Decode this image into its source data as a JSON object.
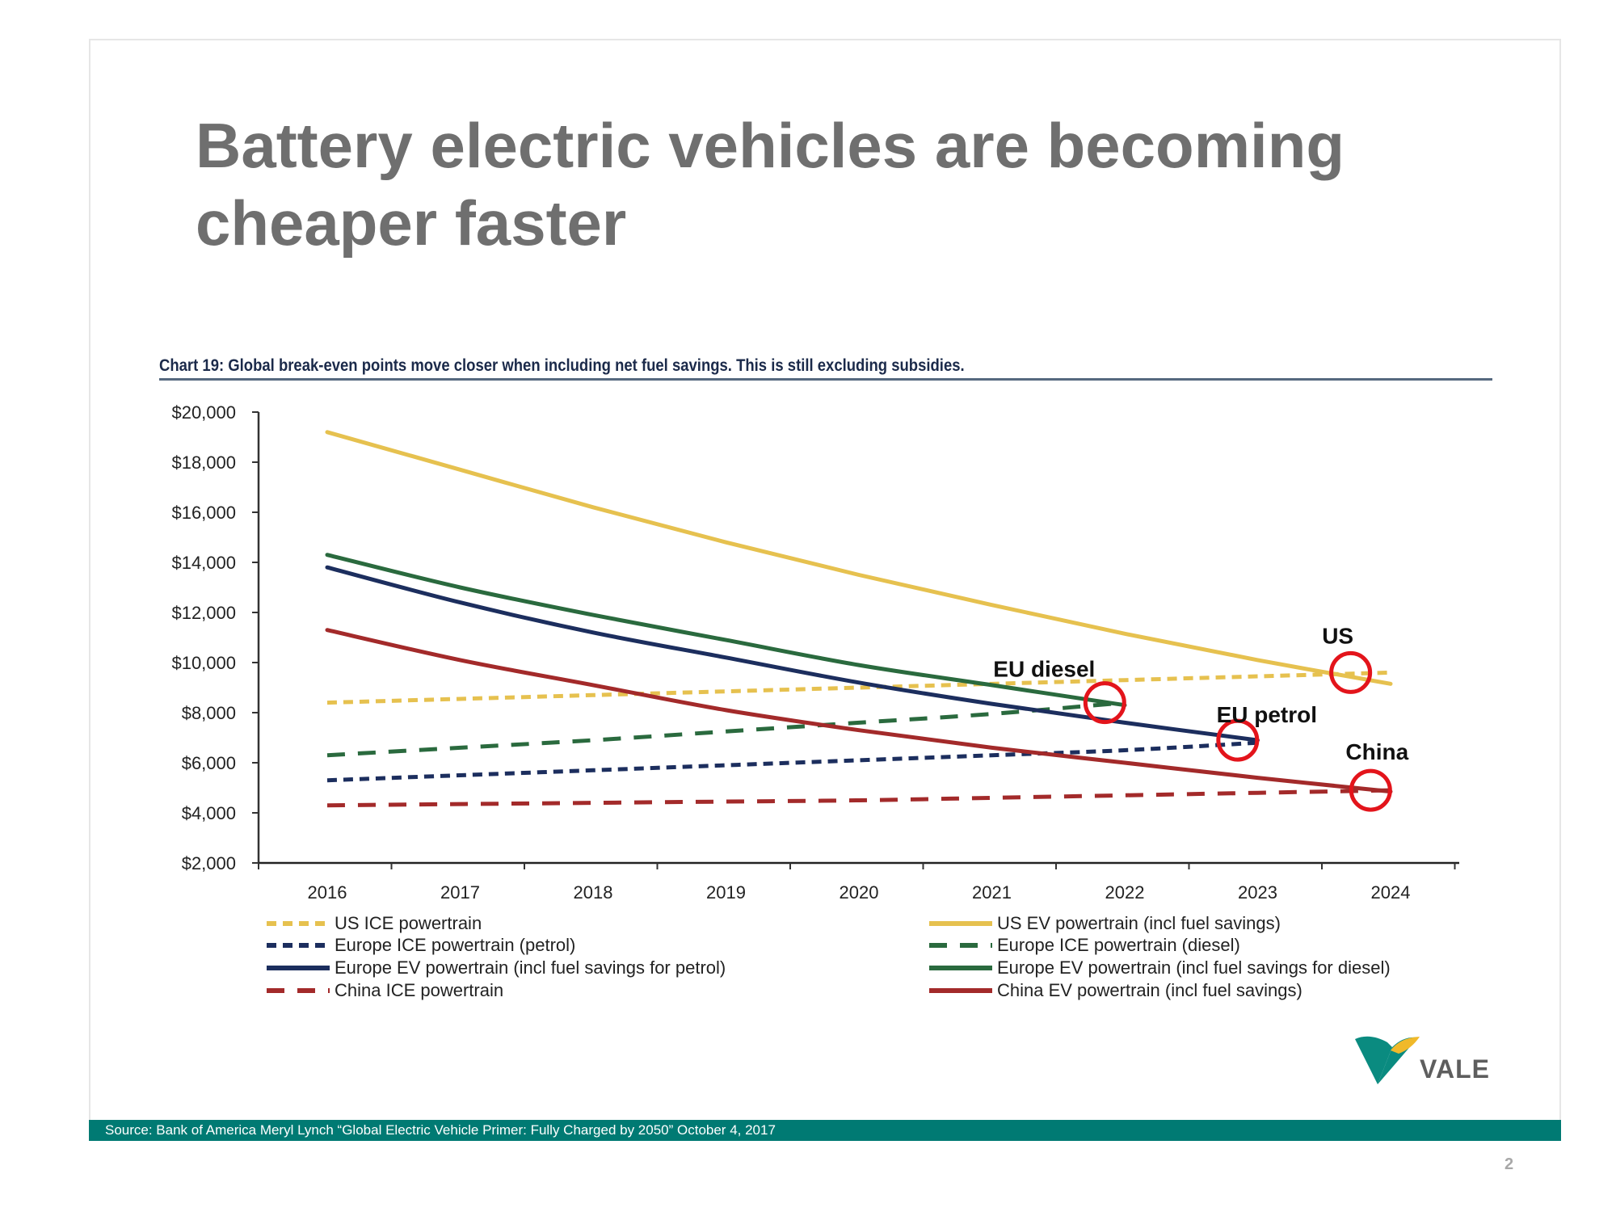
{
  "slide": {
    "title": "Battery electric vehicles are becoming cheaper faster",
    "footer_source": "Source: Bank of America Meryl Lynch “Global Electric Vehicle Primer: Fully Charged by 2050” October 4, 2017",
    "page_number": "2",
    "logo_text": "VALE",
    "colors": {
      "footer": "#007a73",
      "logo_teal": "#0a8b80",
      "logo_yellow": "#f0b92a"
    }
  },
  "chart_data": {
    "type": "line",
    "title": "Chart 19: Global break-even points move closer when including net fuel savings. This is still excluding subsidies.",
    "xlabel": "",
    "ylabel": "",
    "categories": [
      "2016",
      "2017",
      "2018",
      "2019",
      "2020",
      "2021",
      "2022",
      "2023",
      "2024"
    ],
    "ylim": [
      2000,
      20000
    ],
    "yticks": [
      2000,
      4000,
      6000,
      8000,
      10000,
      12000,
      14000,
      16000,
      18000,
      20000
    ],
    "ytick_labels": [
      "$2,000",
      "$4,000",
      "$6,000",
      "$8,000",
      "$10,000",
      "$12,000",
      "$14,000",
      "$16,000",
      "$18,000",
      "$20,000"
    ],
    "grid": false,
    "legend_position": "bottom",
    "series": [
      {
        "name": "US ICE powertrain",
        "color": "#e6c14f",
        "style": "dotted",
        "values": [
          8400,
          8550,
          8700,
          8850,
          9000,
          9150,
          9300,
          9450,
          9600
        ]
      },
      {
        "name": "US EV powertrain (incl fuel savings)",
        "color": "#e6c14f",
        "style": "solid",
        "values": [
          19200,
          17700,
          16200,
          14800,
          13500,
          12300,
          11150,
          10100,
          9150
        ]
      },
      {
        "name": "Europe ICE powertrain (petrol)",
        "color": "#1c2e5e",
        "style": "dotted",
        "values": [
          5300,
          5500,
          5700,
          5900,
          6100,
          6300,
          6500,
          6800,
          null
        ]
      },
      {
        "name": "Europe ICE powertrain (diesel)",
        "color": "#2a6a3e",
        "style": "dashed",
        "values": [
          6300,
          6600,
          6900,
          7250,
          7600,
          7950,
          8400,
          null,
          null
        ]
      },
      {
        "name": "Europe EV powertrain (incl fuel savings for petrol)",
        "color": "#1c2e5e",
        "style": "solid",
        "values": [
          13800,
          12400,
          11200,
          10200,
          9200,
          8350,
          7600,
          6900,
          null
        ]
      },
      {
        "name": "Europe EV powertrain (incl fuel savings for diesel)",
        "color": "#2a6a3e",
        "style": "solid",
        "values": [
          14300,
          13000,
          11900,
          10900,
          9900,
          9100,
          8300,
          null,
          null
        ]
      },
      {
        "name": "China ICE powertrain",
        "color": "#a32a2a",
        "style": "dashed",
        "values": [
          4300,
          4350,
          4400,
          4450,
          4500,
          4600,
          4700,
          4800,
          4900
        ]
      },
      {
        "name": "China EV powertrain (incl fuel savings)",
        "color": "#a32a2a",
        "style": "solid",
        "values": [
          11300,
          10100,
          9100,
          8100,
          7300,
          6600,
          6000,
          5400,
          4850
        ]
      }
    ],
    "annotations": [
      {
        "label": "EU diesel",
        "x": 2021.85,
        "y": 8400
      },
      {
        "label": "EU petrol",
        "x": 2022.85,
        "y": 6900
      },
      {
        "label": "US",
        "x": 2023.7,
        "y": 9600
      },
      {
        "label": "China",
        "x": 2023.85,
        "y": 4900
      }
    ],
    "annotation_marker_color": "#e3141b"
  }
}
